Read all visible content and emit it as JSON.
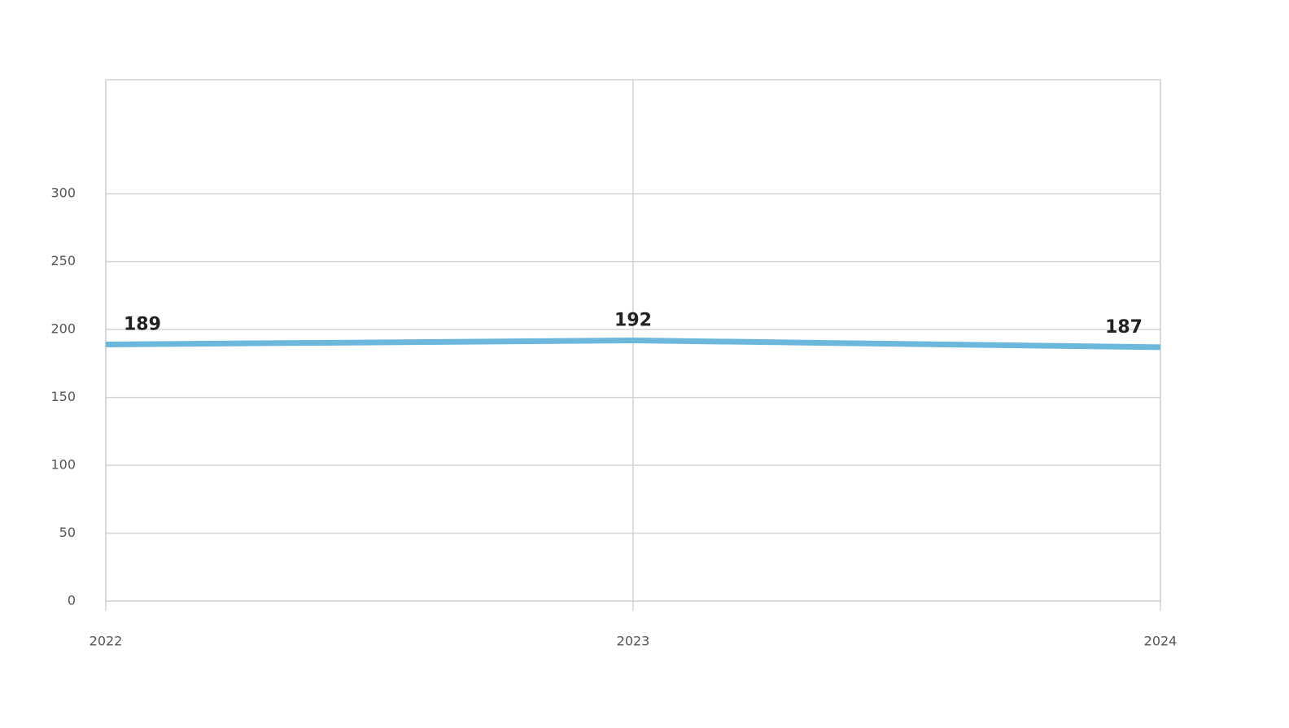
{
  "chart_data": {
    "type": "line",
    "categories": [
      "2022",
      "2023",
      "2024"
    ],
    "series": [
      {
        "color": "#6cb8dc",
        "values": [
          189,
          192,
          187
        ]
      }
    ],
    "ylim": [
      0,
      384
    ],
    "yticks": [
      0,
      50,
      100,
      150,
      200,
      250,
      300
    ],
    "grid": true
  }
}
